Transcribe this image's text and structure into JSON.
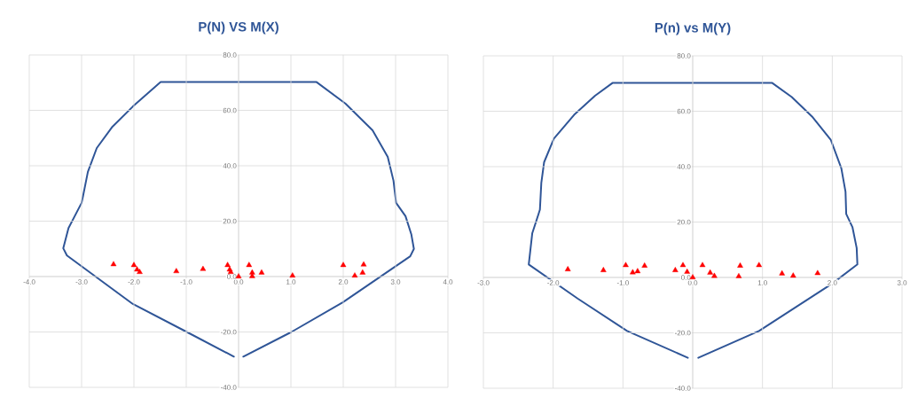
{
  "chart_data": [
    {
      "type": "scatter",
      "title": "P(N)  VS  M(X)",
      "xlim": [
        -4,
        4
      ],
      "ylim": [
        -40,
        80
      ],
      "xticks": [
        {
          "value": -4,
          "label": "-4.0"
        },
        {
          "value": -3,
          "label": "-3.0"
        },
        {
          "value": -2,
          "label": "-2.0"
        },
        {
          "value": -1,
          "label": "-1.0"
        },
        {
          "value": 0,
          "label": "0.0"
        },
        {
          "value": 1,
          "label": "1.0"
        },
        {
          "value": 2,
          "label": "2.0"
        },
        {
          "value": 3,
          "label": "3.0"
        },
        {
          "value": 4,
          "label": "4.0"
        }
      ],
      "yticks": [
        {
          "value": -40,
          "label": "-40.0"
        },
        {
          "value": -20,
          "label": "-20.0"
        },
        {
          "value": 0,
          "label": "0.0"
        },
        {
          "value": 20,
          "label": "20.0"
        },
        {
          "value": 40,
          "label": "40.0"
        },
        {
          "value": 60,
          "label": "60.0"
        },
        {
          "value": 80,
          "label": "80.0"
        }
      ],
      "grid": true,
      "series": [
        {
          "type": "line",
          "color": "#2f5597",
          "marker": "none",
          "x": [
            -0.09,
            -0.99,
            -2.02,
            -3.28,
            -3.35,
            -3.25,
            -3.0,
            -2.97,
            -2.88,
            -2.71,
            -2.42,
            -2.02,
            -1.49,
            1.49,
            2.04,
            2.56,
            2.85,
            2.96,
            3.01,
            3.19,
            3.3,
            3.35,
            3.28,
            1.99,
            1.01,
            0.09
          ],
          "values": [
            -28.9,
            -20,
            -9.9,
            7.6,
            10.2,
            17.5,
            26.6,
            29.3,
            37.8,
            46.4,
            53.9,
            61.4,
            70.2,
            70.2,
            62.5,
            52.8,
            43.2,
            34.6,
            26.6,
            21.8,
            15.3,
            10,
            7.3,
            -9.3,
            -20,
            -28.9
          ]
        },
        {
          "color": "#ff0000",
          "marker": "triangle",
          "x": [
            -2.39,
            -2.0,
            -1.94,
            -1.89,
            -1.19,
            -0.68,
            -0.21,
            -0.17,
            -0.15,
            0.0,
            0.2,
            0.26,
            0.26,
            0.44,
            1.03,
            2.0,
            2.22,
            2.37,
            2.39
          ],
          "values": [
            4.4,
            4.1,
            2.5,
            1.6,
            1.9,
            2.7,
            4.1,
            2.5,
            1.6,
            0.0,
            4.1,
            1.4,
            0.1,
            1.4,
            0.3,
            4.1,
            0.3,
            1.4,
            4.3
          ]
        }
      ]
    },
    {
      "type": "scatter",
      "title": "P(n) vs M(Y)",
      "xlim": [
        -3,
        3
      ],
      "ylim": [
        -40,
        80
      ],
      "xticks": [
        {
          "value": -3,
          "label": "-3.0"
        },
        {
          "value": -2,
          "label": "-2.0"
        },
        {
          "value": -1,
          "label": "-1.0"
        },
        {
          "value": 0,
          "label": "0.0"
        },
        {
          "value": 1,
          "label": "1.0"
        },
        {
          "value": 2,
          "label": "2.0"
        },
        {
          "value": 3,
          "label": "3.0"
        }
      ],
      "yticks": [
        {
          "value": -40,
          "label": "-40.0"
        },
        {
          "value": -20,
          "label": "-20.0"
        },
        {
          "value": 0,
          "label": "0.0"
        },
        {
          "value": 20,
          "label": "20.0"
        },
        {
          "value": 40,
          "label": "40.0"
        },
        {
          "value": 60,
          "label": "60.0"
        },
        {
          "value": 80,
          "label": "80.0"
        }
      ],
      "grid": true,
      "series": [
        {
          "type": "line",
          "color": "#2f5597",
          "marker": "none",
          "x": [
            -0.07,
            -0.94,
            -1.65,
            -2.35,
            -2.3,
            -2.21,
            -2.19,
            -2.17,
            -2.13,
            -1.99,
            -1.7,
            -1.4,
            -1.15,
            1.14,
            1.42,
            1.71,
            1.98,
            2.13,
            2.19,
            2.2,
            2.29,
            2.35,
            2.36,
            2.0,
            0.95,
            0.08
          ],
          "values": [
            -29,
            -19.3,
            -7.6,
            4.7,
            15.9,
            22.9,
            24.5,
            34.1,
            41.6,
            50.1,
            58.7,
            65.6,
            70.2,
            70.2,
            65.1,
            58.1,
            49.6,
            39.4,
            30.9,
            22.9,
            18.1,
            10.6,
            4.7,
            -2.2,
            -19.3,
            -29
          ]
        },
        {
          "color": "#ff0000",
          "marker": "triangle",
          "x": [
            -1.79,
            -1.28,
            -0.96,
            -0.86,
            -0.79,
            -0.69,
            -0.25,
            -0.14,
            -0.08,
            0.0,
            0.14,
            0.25,
            0.31,
            0.66,
            0.68,
            0.95,
            1.28,
            1.44,
            1.79
          ],
          "values": [
            2.9,
            2.6,
            4.4,
            1.8,
            2.2,
            4.2,
            2.6,
            4.4,
            2.0,
            0.0,
            4.4,
            1.7,
            0.5,
            0.4,
            4.2,
            4.4,
            1.4,
            0.6,
            1.5
          ]
        }
      ]
    }
  ]
}
